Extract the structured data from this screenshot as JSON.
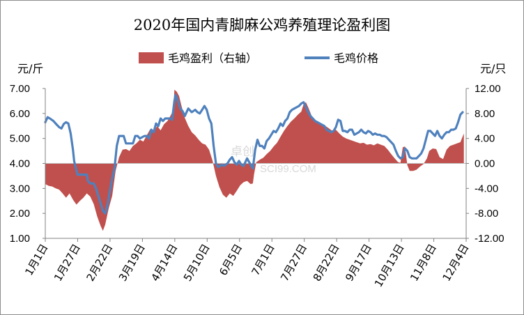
{
  "chart_data": {
    "type": "line+area",
    "title": "2020年国内青脚麻公鸡养殖理论盈利图",
    "left_unit": "元/斤",
    "right_unit": "元/只",
    "legend_position": "top",
    "grid": false,
    "x_ticks": [
      "1月1日",
      "1月27日",
      "2月22日",
      "3月19日",
      "4月14日",
      "5月10日",
      "6月5日",
      "7月1日",
      "7月27日",
      "8月22日",
      "9月17日",
      "10月13日",
      "11月8日",
      "12月4日"
    ],
    "y_left": {
      "ylim": [
        1.0,
        7.0
      ],
      "ticks": [
        "1.00",
        "2.00",
        "3.00",
        "4.00",
        "5.00",
        "6.00",
        "7.00"
      ]
    },
    "y_right": {
      "ylim": [
        -12.0,
        12.0
      ],
      "ticks": [
        "-12.00",
        "-8.00",
        "-4.00",
        "0.00",
        "4.00",
        "8.00",
        "12.00"
      ]
    },
    "colors": {
      "price": "#4f81bd",
      "profit": "#c0504d"
    },
    "series": [
      {
        "name": "毛鸡盈利（右轴）",
        "axis": "right",
        "kind": "area",
        "points": [
          [
            0,
            -3.3
          ],
          [
            3,
            -3.6
          ],
          [
            6,
            -3.7
          ],
          [
            9,
            -4.0
          ],
          [
            12,
            -4.2
          ],
          [
            15,
            -4.8
          ],
          [
            18,
            -5.5
          ],
          [
            21,
            -4.8
          ],
          [
            24,
            -5.8
          ],
          [
            27,
            -6.6
          ],
          [
            30,
            -6.0
          ],
          [
            33,
            -5.5
          ],
          [
            36,
            -4.8
          ],
          [
            39,
            -5.3
          ],
          [
            42,
            -6.5
          ],
          [
            45,
            -8.5
          ],
          [
            48,
            -10.0
          ],
          [
            50,
            -10.8
          ],
          [
            52,
            -9.8
          ],
          [
            55,
            -7.2
          ],
          [
            58,
            -5.2
          ],
          [
            61,
            -1.2
          ],
          [
            64,
            1.0
          ],
          [
            67,
            2.2
          ],
          [
            70,
            2.3
          ],
          [
            73,
            2.0
          ],
          [
            76,
            2.8
          ],
          [
            79,
            3.2
          ],
          [
            82,
            3.8
          ],
          [
            85,
            3.5
          ],
          [
            88,
            4.5
          ],
          [
            91,
            5.5
          ],
          [
            94,
            5.0
          ],
          [
            97,
            6.0
          ],
          [
            100,
            5.3
          ],
          [
            103,
            6.3
          ],
          [
            106,
            6.8
          ],
          [
            109,
            7.8
          ],
          [
            111,
            8.5
          ],
          [
            112,
            11.8
          ],
          [
            114,
            11.5
          ],
          [
            116,
            10.8
          ],
          [
            118,
            9.3
          ],
          [
            121,
            7.3
          ],
          [
            124,
            6.0
          ],
          [
            127,
            5.0
          ],
          [
            130,
            4.5
          ],
          [
            133,
            3.8
          ],
          [
            136,
            3.2
          ],
          [
            139,
            3.0
          ],
          [
            142,
            2.2
          ],
          [
            145,
            0.5
          ],
          [
            148,
            -2.0
          ],
          [
            151,
            -3.8
          ],
          [
            154,
            -5.0
          ],
          [
            157,
            -5.5
          ],
          [
            160,
            -4.8
          ],
          [
            163,
            -5.2
          ],
          [
            166,
            -4.4
          ],
          [
            169,
            -3.5
          ],
          [
            172,
            -3.0
          ],
          [
            175,
            -2.8
          ],
          [
            178,
            -3.3
          ],
          [
            180,
            -3.2
          ],
          [
            181,
            -1.8
          ],
          [
            183,
            0.2
          ],
          [
            186,
            0.6
          ],
          [
            189,
            0.9
          ],
          [
            192,
            1.5
          ],
          [
            195,
            2.0
          ],
          [
            198,
            2.7
          ],
          [
            201,
            3.3
          ],
          [
            204,
            4.3
          ],
          [
            207,
            5.2
          ],
          [
            210,
            6.0
          ],
          [
            213,
            6.7
          ],
          [
            216,
            7.2
          ],
          [
            219,
            7.8
          ],
          [
            222,
            8.3
          ],
          [
            224,
            9.5
          ],
          [
            226,
            9.8
          ],
          [
            228,
            9.0
          ],
          [
            231,
            7.6
          ],
          [
            234,
            6.6
          ],
          [
            237,
            6.7
          ],
          [
            240,
            6.3
          ],
          [
            243,
            6.0
          ],
          [
            246,
            5.6
          ],
          [
            249,
            5.2
          ],
          [
            252,
            5.4
          ],
          [
            255,
            4.8
          ],
          [
            258,
            4.3
          ],
          [
            261,
            4.0
          ],
          [
            264,
            3.8
          ],
          [
            267,
            3.6
          ],
          [
            270,
            3.4
          ],
          [
            273,
            3.2
          ],
          [
            276,
            3.3
          ],
          [
            279,
            3.0
          ],
          [
            282,
            3.1
          ],
          [
            285,
            2.9
          ],
          [
            288,
            3.2
          ],
          [
            291,
            3.0
          ],
          [
            294,
            2.8
          ],
          [
            297,
            2.2
          ],
          [
            300,
            1.5
          ],
          [
            303,
            0.8
          ],
          [
            306,
            0.2
          ],
          [
            308,
            0.1
          ],
          [
            310,
            2.6
          ],
          [
            312,
            2.7
          ],
          [
            314,
            -0.3
          ],
          [
            316,
            -1.2
          ],
          [
            319,
            -1.2
          ],
          [
            322,
            -1.0
          ],
          [
            325,
            -0.5
          ],
          [
            328,
            -0.1
          ],
          [
            331,
            0.8
          ],
          [
            333,
            2.0
          ],
          [
            336,
            2.4
          ],
          [
            339,
            2.3
          ],
          [
            342,
            1.0
          ],
          [
            345,
            0.7
          ],
          [
            348,
            2.2
          ],
          [
            351,
            2.8
          ],
          [
            354,
            3.0
          ],
          [
            357,
            3.2
          ],
          [
            360,
            3.4
          ],
          [
            363,
            4.8
          ]
        ]
      },
      {
        "name": "毛鸡价格",
        "axis": "left",
        "kind": "line",
        "points": [
          [
            0,
            5.65
          ],
          [
            2,
            5.85
          ],
          [
            4,
            5.8
          ],
          [
            7,
            5.7
          ],
          [
            10,
            5.55
          ],
          [
            12,
            5.45
          ],
          [
            14,
            5.4
          ],
          [
            16,
            5.58
          ],
          [
            18,
            5.65
          ],
          [
            20,
            5.6
          ],
          [
            22,
            5.2
          ],
          [
            24,
            4.55
          ],
          [
            25,
            4.1
          ],
          [
            26,
            3.9
          ],
          [
            28,
            3.55
          ],
          [
            30,
            3.55
          ],
          [
            32,
            3.55
          ],
          [
            34,
            3.55
          ],
          [
            36,
            3.55
          ],
          [
            37,
            3.3
          ],
          [
            39,
            3.2
          ],
          [
            42,
            3.2
          ],
          [
            44,
            3.0
          ],
          [
            46,
            2.7
          ],
          [
            48,
            2.4
          ],
          [
            50,
            2.1
          ],
          [
            52,
            2.0
          ],
          [
            54,
            2.35
          ],
          [
            56,
            2.9
          ],
          [
            58,
            3.4
          ],
          [
            60,
            3.8
          ],
          [
            62,
            4.7
          ],
          [
            64,
            5.1
          ],
          [
            66,
            5.1
          ],
          [
            68,
            5.1
          ],
          [
            70,
            4.8
          ],
          [
            72,
            4.8
          ],
          [
            74,
            4.8
          ],
          [
            76,
            4.8
          ],
          [
            78,
            5.1
          ],
          [
            80,
            5.1
          ],
          [
            82,
            5.0
          ],
          [
            84,
            5.05
          ],
          [
            86,
            5.1
          ],
          [
            88,
            5.1
          ],
          [
            90,
            5.0
          ],
          [
            92,
            5.35
          ],
          [
            94,
            5.25
          ],
          [
            96,
            5.6
          ],
          [
            98,
            5.5
          ],
          [
            100,
            5.8
          ],
          [
            102,
            5.7
          ],
          [
            104,
            5.8
          ],
          [
            106,
            5.8
          ],
          [
            108,
            5.8
          ],
          [
            110,
            5.75
          ],
          [
            112,
            6.5
          ],
          [
            113,
            6.75
          ],
          [
            115,
            6.5
          ],
          [
            117,
            6.2
          ],
          [
            119,
            6.1
          ],
          [
            121,
            5.9
          ],
          [
            124,
            6.2
          ],
          [
            127,
            6.05
          ],
          [
            130,
            6.15
          ],
          [
            132,
            6.05
          ],
          [
            134,
            6.0
          ],
          [
            136,
            6.15
          ],
          [
            138,
            6.3
          ],
          [
            140,
            6.15
          ],
          [
            142,
            5.8
          ],
          [
            144,
            5.6
          ],
          [
            146,
            4.7
          ],
          [
            148,
            4.0
          ],
          [
            150,
            3.85
          ],
          [
            153,
            3.95
          ],
          [
            155,
            3.9
          ],
          [
            158,
            4.0
          ],
          [
            160,
            4.15
          ],
          [
            162,
            4.25
          ],
          [
            164,
            4.05
          ],
          [
            166,
            3.95
          ],
          [
            168,
            4.1
          ],
          [
            170,
            3.95
          ],
          [
            172,
            3.9
          ],
          [
            175,
            4.2
          ],
          [
            178,
            3.95
          ],
          [
            180,
            3.8
          ],
          [
            182,
            4.55
          ],
          [
            184,
            4.95
          ],
          [
            186,
            4.7
          ],
          [
            188,
            4.7
          ],
          [
            190,
            4.6
          ],
          [
            192,
            4.9
          ],
          [
            194,
            5.0
          ],
          [
            196,
            5.15
          ],
          [
            198,
            5.3
          ],
          [
            200,
            5.25
          ],
          [
            202,
            5.4
          ],
          [
            204,
            5.6
          ],
          [
            206,
            5.5
          ],
          [
            208,
            5.7
          ],
          [
            210,
            5.8
          ],
          [
            212,
            6.05
          ],
          [
            214,
            6.15
          ],
          [
            216,
            6.2
          ],
          [
            218,
            6.25
          ],
          [
            220,
            6.3
          ],
          [
            222,
            6.4
          ],
          [
            224,
            6.45
          ],
          [
            226,
            6.25
          ],
          [
            228,
            6.05
          ],
          [
            230,
            5.9
          ],
          [
            232,
            5.8
          ],
          [
            234,
            5.7
          ],
          [
            236,
            5.65
          ],
          [
            238,
            5.6
          ],
          [
            240,
            5.55
          ],
          [
            242,
            5.5
          ],
          [
            244,
            5.35
          ],
          [
            246,
            5.3
          ],
          [
            248,
            5.25
          ],
          [
            250,
            5.3
          ],
          [
            252,
            5.45
          ],
          [
            254,
            5.75
          ],
          [
            256,
            5.7
          ],
          [
            258,
            5.3
          ],
          [
            260,
            5.3
          ],
          [
            262,
            5.25
          ],
          [
            264,
            5.35
          ],
          [
            266,
            5.35
          ],
          [
            268,
            5.15
          ],
          [
            270,
            5.2
          ],
          [
            272,
            5.25
          ],
          [
            274,
            5.35
          ],
          [
            276,
            5.25
          ],
          [
            278,
            5.2
          ],
          [
            280,
            5.3
          ],
          [
            282,
            5.25
          ],
          [
            284,
            5.15
          ],
          [
            286,
            5.2
          ],
          [
            288,
            5.15
          ],
          [
            290,
            5.15
          ],
          [
            292,
            5.1
          ],
          [
            294,
            5.1
          ],
          [
            296,
            5.05
          ],
          [
            298,
            4.95
          ],
          [
            300,
            4.85
          ],
          [
            302,
            4.75
          ],
          [
            304,
            4.5
          ],
          [
            306,
            4.3
          ],
          [
            308,
            4.2
          ],
          [
            310,
            4.25
          ],
          [
            312,
            4.6
          ],
          [
            314,
            4.5
          ],
          [
            316,
            4.25
          ],
          [
            318,
            4.2
          ],
          [
            320,
            4.2
          ],
          [
            322,
            4.2
          ],
          [
            324,
            4.3
          ],
          [
            326,
            4.4
          ],
          [
            328,
            4.6
          ],
          [
            330,
            4.95
          ],
          [
            332,
            5.3
          ],
          [
            334,
            5.3
          ],
          [
            336,
            5.2
          ],
          [
            338,
            5.1
          ],
          [
            340,
            5.3
          ],
          [
            342,
            5.1
          ],
          [
            344,
            5.0
          ],
          [
            346,
            5.15
          ],
          [
            348,
            5.25
          ],
          [
            350,
            5.25
          ],
          [
            352,
            5.35
          ],
          [
            354,
            5.35
          ],
          [
            356,
            5.4
          ],
          [
            358,
            5.65
          ],
          [
            360,
            5.95
          ],
          [
            362,
            6.05
          ]
        ]
      }
    ]
  },
  "watermark": {
    "cn": "卓创",
    "en": "SCI99.COM"
  }
}
